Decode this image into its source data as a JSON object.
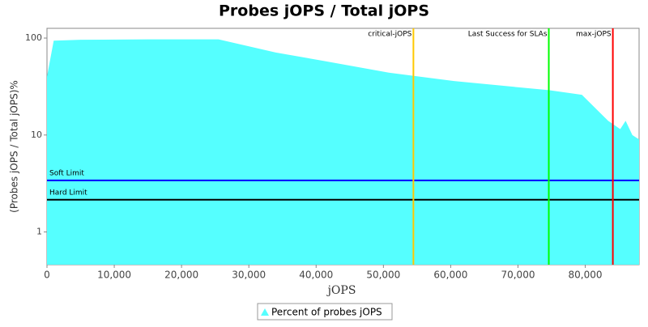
{
  "chart_data": {
    "type": "area",
    "title": "Probes jOPS / Total jOPS",
    "x_label": "jOPS",
    "y_label": "(Probes jOPS / Total jOPS)%",
    "series": [
      {
        "name": "Percent of probes jOPS",
        "color": "#55ffff",
        "x": [
          0,
          1000,
          5000,
          15000,
          25500,
          34000,
          41200,
          50800,
          60500,
          74600,
          79500,
          83400,
          85200,
          86000,
          87000,
          88000
        ],
        "values": [
          40,
          94,
          96,
          97,
          97,
          71,
          58,
          44,
          36,
          29,
          26,
          14,
          11.5,
          14,
          10,
          9
        ]
      }
    ],
    "vlines": [
      {
        "label": "critical-jOPS",
        "value": 54460,
        "color": "#ffc800"
      },
      {
        "label": "Last Success for SLAs",
        "value": 74580,
        "color": "#00ff00"
      },
      {
        "label": "max-jOPS",
        "value": 84100,
        "color": "#ff0000"
      }
    ],
    "hlines": [
      {
        "label": "Soft Limit",
        "value": 3.4,
        "color": "#0000ff"
      },
      {
        "label": "Hard Limit",
        "value": 2.15,
        "color": "#000000"
      }
    ],
    "xlim": [
      0,
      88000
    ],
    "xticks": [
      0,
      {
        "value": 10000,
        "label": "10,000"
      },
      {
        "value": 20000,
        "label": "20,000"
      },
      {
        "value": 30000,
        "label": "30,000"
      },
      {
        "value": 40000,
        "label": "40,000"
      },
      {
        "value": 50000,
        "label": "50,000"
      },
      {
        "value": 60000,
        "label": "60,000"
      },
      {
        "value": 70000,
        "label": "70,000"
      },
      {
        "value": 80000,
        "label": "80,000"
      }
    ],
    "ylim": [
      0.46,
      126
    ],
    "yticks": [
      1,
      10,
      100
    ],
    "log_y": true,
    "legend": "bottom"
  }
}
